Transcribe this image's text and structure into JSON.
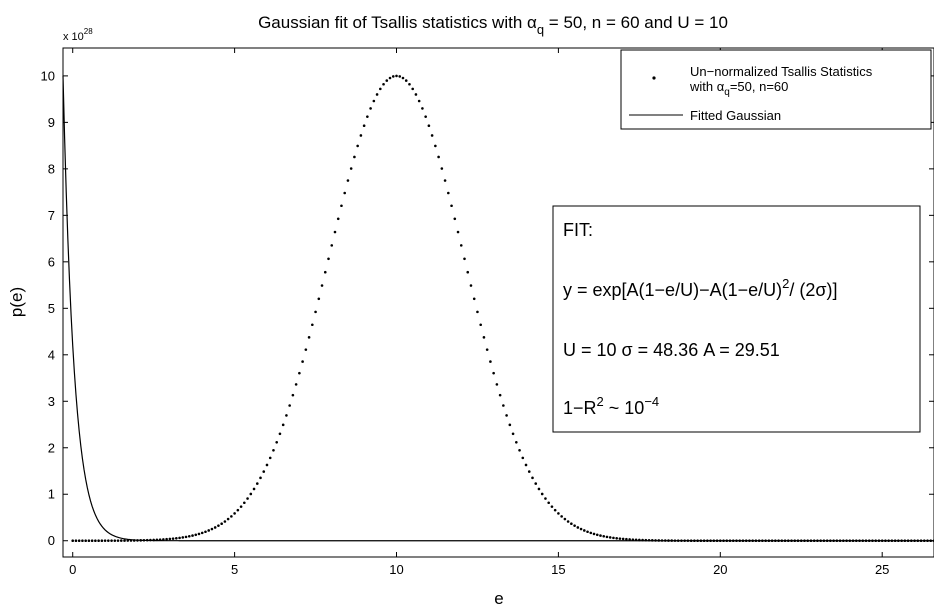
{
  "chart_data": {
    "type": "line",
    "title_parts": {
      "pre": "Gaussian fit of Tsallis statistics with ",
      "alpha": "α",
      "alpha_sub": "q",
      "post": " = 50, n = 60 and U = 10"
    },
    "xlabel": "e",
    "ylabel": "p(e)",
    "y_multiplier": {
      "base": "x 10",
      "exp": "28"
    },
    "xlim": [
      -0.3,
      26.6
    ],
    "ylim": [
      -0.35,
      10.6
    ],
    "x_ticks": [
      0,
      5,
      10,
      15,
      20,
      25
    ],
    "y_ticks": [
      0,
      1,
      2,
      3,
      4,
      5,
      6,
      7,
      8,
      9,
      10
    ],
    "grid": false,
    "legend_position": "top-right",
    "series": [
      {
        "name_line1": "Un−normalized Tsallis Statistics",
        "name_line2_pre": "with ",
        "name_line2_alpha": "α",
        "name_line2_sub": "q",
        "name_line2_post": "=50, n=60",
        "style": "dots",
        "color": "#000000",
        "x_start": 0,
        "x_end": 26.6,
        "x_step": 0.1,
        "model": {
          "U": 10,
          "sigma": 2.1,
          "peak": 10
        }
      },
      {
        "name": "Fitted Gaussian",
        "style": "line",
        "color": "#000000",
        "model": {
          "U": 10,
          "sigma": 48.36,
          "A": 29.51,
          "peak": 10
        }
      }
    ],
    "annotation": {
      "heading": "FIT:",
      "equation": {
        "p1": "y = exp[A(1−e/U)−A(1−e/U)",
        "sup": "2",
        "p2": "/ (2σ)]"
      },
      "params": "U = 10 σ = 48.36 A = 29.51",
      "r2": {
        "p1": "1−R",
        "sup1": "2",
        "p2": " ~ 10",
        "sup2": "−4"
      }
    }
  }
}
